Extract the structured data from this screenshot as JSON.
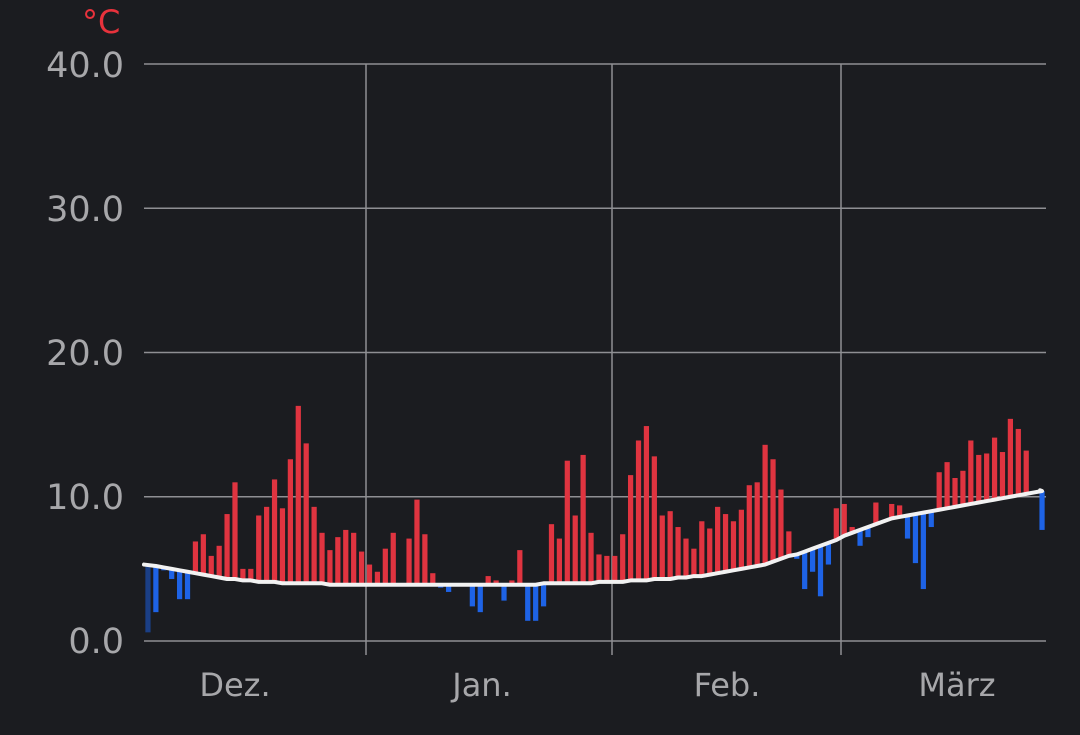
{
  "chart_data": {
    "type": "bar",
    "unit_label": "°C",
    "ylim": [
      0,
      40
    ],
    "yticks": [
      "0.0",
      "10.0",
      "20.0",
      "30.0",
      "40.0"
    ],
    "month_labels": [
      "Dez.",
      "Jan.",
      "Feb.",
      "März"
    ],
    "grid": true,
    "colors": {
      "above": "#e03440",
      "below": "#1e63e6",
      "below_dark": "#1b3f86",
      "normal_line": "#f2f2f2",
      "grid": "#8f8f93",
      "text": "#a7a7aa",
      "unit": "#e8323c"
    },
    "series": [
      {
        "values": [
          0.6,
          2.0,
          4.9,
          4.3,
          2.9,
          2.9,
          6.9,
          7.4,
          5.9,
          6.6,
          8.8,
          11.0,
          5.0,
          5.0,
          8.7,
          9.3,
          11.2,
          9.2,
          12.6,
          16.3,
          13.7,
          9.3,
          7.5,
          6.3,
          7.2,
          7.7,
          7.5,
          6.2,
          5.3,
          4.8,
          6.4,
          7.5,
          3.8,
          7.1,
          9.8,
          7.4,
          4.7,
          3.7,
          3.4,
          3.8,
          3.9,
          2.4,
          2.0,
          4.5,
          4.2,
          2.8,
          4.2,
          6.3,
          1.4,
          1.4,
          2.4,
          8.1,
          7.1,
          12.5,
          8.7,
          12.9,
          7.5,
          6.0,
          5.9,
          5.9,
          7.4,
          11.5,
          13.9,
          14.9,
          12.8,
          8.7,
          9.0,
          7.9,
          7.1,
          6.4,
          8.3,
          7.8,
          9.3,
          8.8,
          8.3,
          9.1,
          10.8,
          11.0,
          13.6,
          12.6,
          10.5,
          7.6,
          5.7,
          3.6,
          4.8,
          3.1,
          5.3,
          9.2,
          9.5,
          7.9,
          6.6,
          7.2,
          9.6,
          8.3,
          9.5,
          9.4,
          7.1,
          5.4,
          3.6,
          7.9,
          11.7,
          12.4,
          11.3,
          11.8,
          13.9,
          12.9,
          13.0,
          14.1,
          13.1,
          15.4,
          14.7,
          13.2,
          10.4,
          7.7
        ]
      },
      {
        "values": [
          5.3,
          5.2,
          5.1,
          5.0,
          4.9,
          4.8,
          4.7,
          4.6,
          4.5,
          4.4,
          4.3,
          4.3,
          4.2,
          4.2,
          4.1,
          4.1,
          4.1,
          4.0,
          4.0,
          4.0,
          4.0,
          4.0,
          4.0,
          3.9,
          3.9,
          3.9,
          3.9,
          3.9,
          3.9,
          3.9,
          3.9,
          3.9,
          3.9,
          3.9,
          3.9,
          3.9,
          3.9,
          3.9,
          3.9,
          3.9,
          3.9,
          3.9,
          3.9,
          3.9,
          3.9,
          3.9,
          3.9,
          3.9,
          3.9,
          3.9,
          4.0,
          4.0,
          4.0,
          4.0,
          4.0,
          4.0,
          4.0,
          4.1,
          4.1,
          4.1,
          4.1,
          4.2,
          4.2,
          4.2,
          4.3,
          4.3,
          4.3,
          4.4,
          4.4,
          4.5,
          4.5,
          4.6,
          4.7,
          4.8,
          4.9,
          5.0,
          5.1,
          5.2,
          5.3,
          5.5,
          5.7,
          5.9,
          6.0,
          6.2,
          6.4,
          6.6,
          6.8,
          7.0,
          7.3,
          7.5,
          7.7,
          7.9,
          8.1,
          8.3,
          8.5,
          8.6,
          8.7,
          8.8,
          8.9,
          9.0,
          9.1,
          9.2,
          9.3,
          9.4,
          9.5,
          9.6,
          9.7,
          9.8,
          9.9,
          10.0,
          10.1,
          10.2,
          10.3,
          10.4
        ]
      }
    ]
  }
}
